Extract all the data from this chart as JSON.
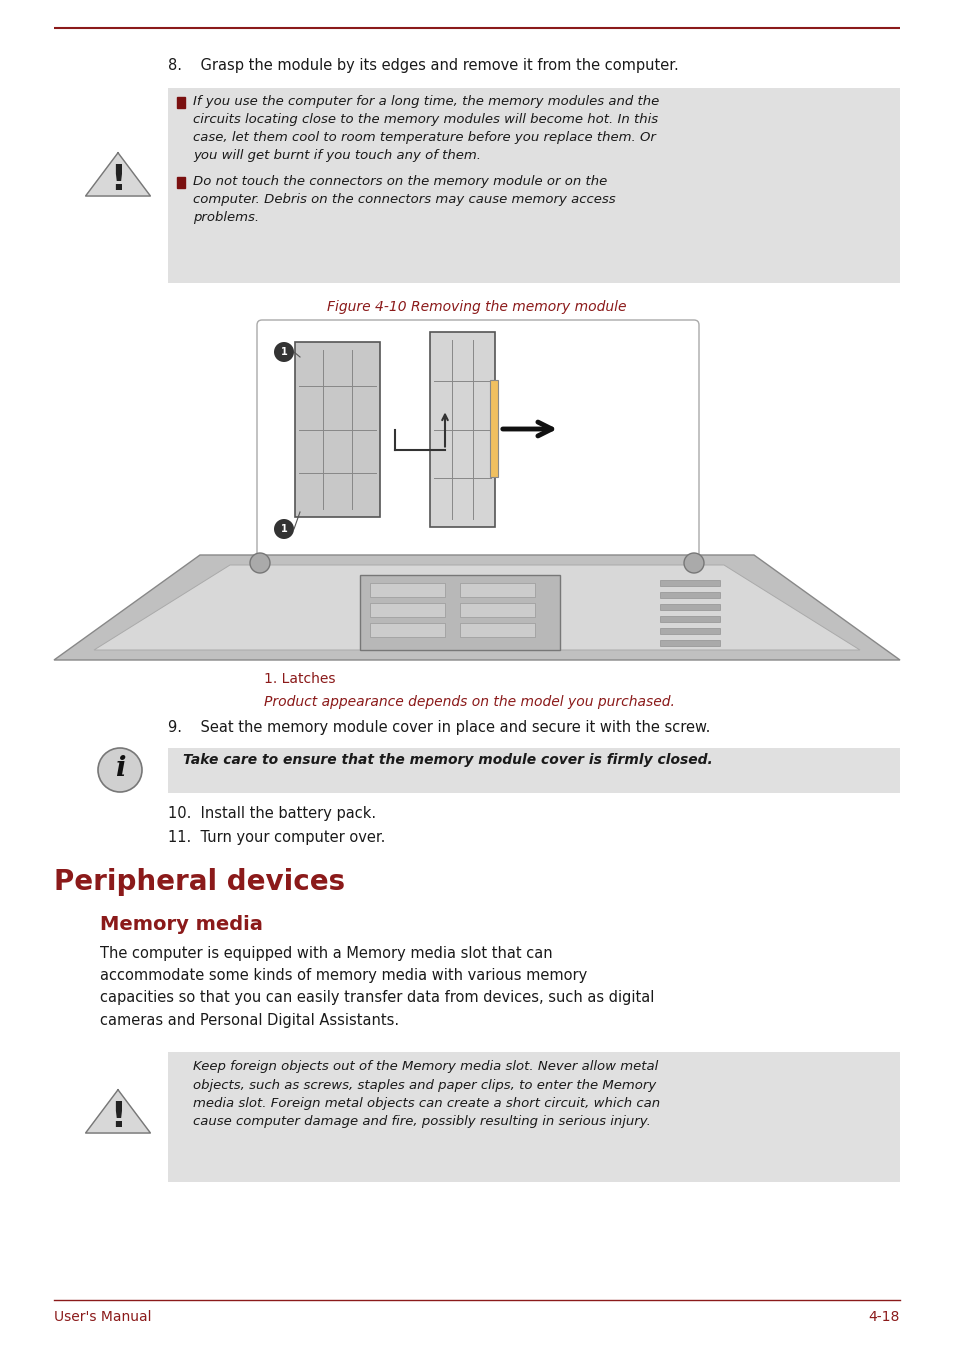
{
  "bg_color": "#ffffff",
  "line_color": "#8B1A1A",
  "footer_left": "User's Manual",
  "footer_right": "4-18",
  "footer_color": "#8B1A1A",
  "section_title": "Peripheral devices",
  "section_title_color": "#8B1A1A",
  "subsection_title": "Memory media",
  "subsection_title_color": "#8B1A1A",
  "warning_bg": "#e0e0e0",
  "info_bg": "#e0e0e0",
  "step8": "8.    Grasp the module by its edges and remove it from the computer.",
  "warn1_bullet1": "If you use the computer for a long time, the memory modules and the\ncircuits locating close to the memory modules will become hot. In this\ncase, let them cool to room temperature before you replace them. Or\nyou will get burnt if you touch any of them.",
  "warn1_bullet2": "Do not touch the connectors on the memory module or on the\ncomputer. Debris on the connectors may cause memory access\nproblems.",
  "figure_caption": "Figure 4-10 Removing the memory module",
  "figure_caption_color": "#8B1A1A",
  "latches_text": "1. Latches",
  "latches_color": "#8B1A1A",
  "product_note": "Product appearance depends on the model you purchased.",
  "product_note_color": "#8B1A1A",
  "step9": "9.    Seat the memory module cover in place and secure it with the screw.",
  "info_text": "Take care to ensure that the memory module cover is firmly closed.",
  "step10": "10.  Install the battery pack.",
  "step11": "11.  Turn your computer over.",
  "body_text": "The computer is equipped with a Memory media slot that can\naccommodate some kinds of memory media with various memory\ncapacities so that you can easily transfer data from devices, such as digital\ncameras and Personal Digital Assistants.",
  "warn3_text": "Keep foreign objects out of the Memory media slot. Never allow metal\nobjects, such as screws, staples and paper clips, to enter the Memory\nmedia slot. Foreign metal objects can create a short circuit, which can\ncause computer damage and fire, possibly resulting in serious injury."
}
